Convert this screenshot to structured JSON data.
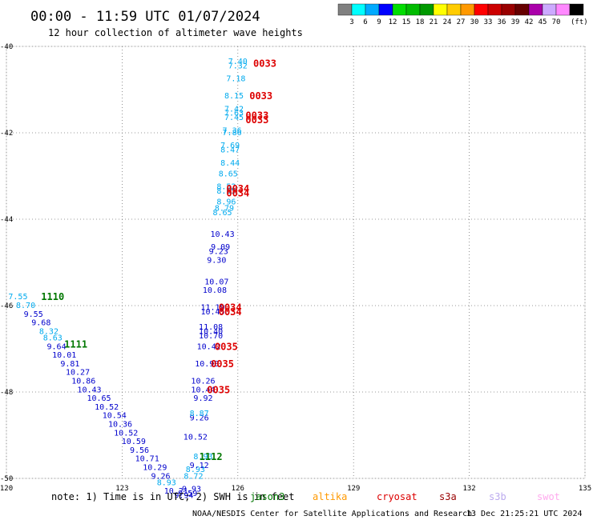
{
  "header": {
    "title": "00:00 - 11:59 UTC 01/07/2024",
    "subtitle": "12 hour collection of altimeter wave heights"
  },
  "legend": {
    "unit": "(ft)",
    "colors": [
      "#808080",
      "#00ffff",
      "#00aaff",
      "#0000ff",
      "#00dd00",
      "#00bb00",
      "#009900",
      "#ffff00",
      "#ffcc00",
      "#ff9900",
      "#ff0000",
      "#cc0000",
      "#990000",
      "#660000",
      "#aa00aa",
      "#ccaaff",
      "#ff88ff",
      "#000000"
    ],
    "labels": [
      "3",
      "6",
      "9",
      "12",
      "15",
      "18",
      "21",
      "24",
      "27",
      "30",
      "33",
      "36",
      "39",
      "42",
      "45",
      "70"
    ]
  },
  "footer": {
    "note": "note: 1) Time is in UTC; 2) SWH is in feet",
    "credit": "NOAA/NESDIS Center for Satellite Applications and Research",
    "timestamp": "13 Dec 21:25:21 UTC 2024",
    "satellites": [
      {
        "name": "jason3",
        "color": "#007700"
      },
      {
        "name": "altika",
        "color": "#ff9900"
      },
      {
        "name": "cryosat",
        "color": "#dd0000"
      },
      {
        "name": "s3a",
        "color": "#990000"
      },
      {
        "name": "s3b",
        "color": "#bbaaee"
      },
      {
        "name": "swot",
        "color": "#ffaaee"
      }
    ]
  },
  "chart_data": {
    "type": "scatter",
    "xlim": [
      120,
      135
    ],
    "ylim": [
      -50,
      -40
    ],
    "x_ticks": [
      120,
      123,
      126,
      129,
      132,
      135
    ],
    "y_ticks": [
      -40,
      -42,
      -44,
      -46,
      -48,
      -50
    ],
    "tick_labels": {
      "x": [
        "120",
        "123",
        "126",
        "129",
        "132",
        "135"
      ],
      "y": [
        "-40",
        "-42",
        "-44",
        "-46",
        "-48",
        "-50"
      ]
    },
    "grid": true,
    "series": [
      {
        "name": "jason3",
        "color": "#007700",
        "passes": [
          {
            "label": "1110",
            "x": 121.2,
            "y": -45.8
          },
          {
            "label": "1111",
            "x": 121.8,
            "y": -46.9
          },
          {
            "label": "1112",
            "x": 125.3,
            "y": -49.5
          }
        ],
        "points": [
          {
            "x": 120.3,
            "y": -45.8,
            "v": "7.55"
          },
          {
            "x": 120.5,
            "y": -46.0,
            "v": "8.70"
          },
          {
            "x": 120.7,
            "y": -46.2,
            "v": "9.55"
          },
          {
            "x": 120.9,
            "y": -46.4,
            "v": "9.68"
          },
          {
            "x": 121.1,
            "y": -46.6,
            "v": "8.32"
          },
          {
            "x": 121.2,
            "y": -46.75,
            "v": "8.63"
          },
          {
            "x": 121.3,
            "y": -46.95,
            "v": "9.64"
          },
          {
            "x": 121.5,
            "y": -47.15,
            "v": "10.01"
          },
          {
            "x": 121.65,
            "y": -47.35,
            "v": "9.81"
          },
          {
            "x": 121.85,
            "y": -47.55,
            "v": "10.27"
          },
          {
            "x": 122.0,
            "y": -47.75,
            "v": "10.86"
          },
          {
            "x": 122.15,
            "y": -47.95,
            "v": "10.43"
          },
          {
            "x": 122.4,
            "y": -48.15,
            "v": "10.65"
          },
          {
            "x": 122.6,
            "y": -48.35,
            "v": "10.52"
          },
          {
            "x": 122.8,
            "y": -48.55,
            "v": "10.54"
          },
          {
            "x": 122.95,
            "y": -48.75,
            "v": "10.36"
          },
          {
            "x": 123.1,
            "y": -48.95,
            "v": "10.52"
          },
          {
            "x": 123.3,
            "y": -49.15,
            "v": "10.59"
          },
          {
            "x": 123.45,
            "y": -49.35,
            "v": "9.56"
          },
          {
            "x": 123.65,
            "y": -49.55,
            "v": "10.71"
          },
          {
            "x": 123.85,
            "y": -49.75,
            "v": "10.29"
          },
          {
            "x": 124.0,
            "y": -49.95,
            "v": "9.26"
          },
          {
            "x": 124.15,
            "y": -50.1,
            "v": "8.93"
          },
          {
            "x": 124.4,
            "y": -50.3,
            "v": "10.21"
          },
          {
            "x": 124.6,
            "y": -50.4,
            "v": "9.94"
          },
          {
            "x": 124.7,
            "y": -50.35,
            "v": "9.59"
          },
          {
            "x": 124.8,
            "y": -50.25,
            "v": "9.93"
          },
          {
            "x": 124.85,
            "y": -49.95,
            "v": "8.72"
          },
          {
            "x": 124.9,
            "y": -49.8,
            "v": "8.93"
          },
          {
            "x": 125.0,
            "y": -49.7,
            "v": "9.12"
          },
          {
            "x": 125.1,
            "y": -49.5,
            "v": "8.93"
          },
          {
            "x": 124.9,
            "y": -49.05,
            "v": "10.52"
          },
          {
            "x": 125.0,
            "y": -48.6,
            "v": "9.26"
          },
          {
            "x": 125.0,
            "y": -48.5,
            "v": "8.87"
          },
          {
            "x": 125.1,
            "y": -48.15,
            "v": "9.92"
          },
          {
            "x": 125.1,
            "y": -47.95,
            "v": "10.44"
          },
          {
            "x": 125.1,
            "y": -47.75,
            "v": "10.26"
          },
          {
            "x": 125.2,
            "y": -47.35,
            "v": "10.98"
          },
          {
            "x": 125.25,
            "y": -46.95,
            "v": "10.42"
          },
          {
            "x": 125.3,
            "y": -46.7,
            "v": "10.70"
          },
          {
            "x": 125.3,
            "y": -46.6,
            "v": "10.40"
          },
          {
            "x": 125.3,
            "y": -46.5,
            "v": "11.08"
          },
          {
            "x": 125.35,
            "y": -46.15,
            "v": "10.45"
          },
          {
            "x": 125.35,
            "y": -46.05,
            "v": "11.19"
          },
          {
            "x": 125.4,
            "y": -45.65,
            "v": "10.08"
          },
          {
            "x": 125.45,
            "y": -45.45,
            "v": "10.07"
          },
          {
            "x": 125.45,
            "y": -44.95,
            "v": "9.30"
          },
          {
            "x": 125.5,
            "y": -44.75,
            "v": "9.23"
          },
          {
            "x": 125.55,
            "y": -44.65,
            "v": "9.09"
          },
          {
            "x": 125.6,
            "y": -44.35,
            "v": "10.43"
          },
          {
            "x": 125.6,
            "y": -43.85,
            "v": "8.65"
          },
          {
            "x": 125.65,
            "y": -43.75,
            "v": "8.79"
          },
          {
            "x": 125.7,
            "y": -43.6,
            "v": "8.96"
          },
          {
            "x": 125.7,
            "y": -43.35,
            "v": "8.65"
          },
          {
            "x": 125.7,
            "y": -43.25,
            "v": "8.52"
          },
          {
            "x": 125.75,
            "y": -42.95,
            "v": "8.65"
          },
          {
            "x": 125.8,
            "y": -42.7,
            "v": "8.44"
          },
          {
            "x": 125.8,
            "y": -42.4,
            "v": "8.47"
          },
          {
            "x": 125.8,
            "y": -42.3,
            "v": "7.69"
          },
          {
            "x": 125.85,
            "y": -42.0,
            "v": "7.86"
          },
          {
            "x": 125.85,
            "y": -41.95,
            "v": "7.36"
          },
          {
            "x": 125.9,
            "y": -41.65,
            "v": "7.45"
          },
          {
            "x": 125.9,
            "y": -41.55,
            "v": "7.63"
          },
          {
            "x": 125.9,
            "y": -41.45,
            "v": "7.42"
          },
          {
            "x": 125.9,
            "y": -41.15,
            "v": "8.15"
          },
          {
            "x": 125.95,
            "y": -40.75,
            "v": "7.18"
          },
          {
            "x": 126.0,
            "y": -40.45,
            "v": "7.32"
          },
          {
            "x": 126.0,
            "y": -40.35,
            "v": "7.40"
          }
        ]
      },
      {
        "name": "cryosat",
        "color": "#dd0000",
        "passes": [
          {
            "label": "0033",
            "x": 126.7,
            "y": -40.4
          },
          {
            "label": "0033",
            "x": 126.6,
            "y": -41.15
          },
          {
            "label": "0033",
            "x": 126.5,
            "y": -41.6
          },
          {
            "label": "0033",
            "x": 126.5,
            "y": -41.7
          },
          {
            "label": "0034",
            "x": 126.0,
            "y": -43.3
          },
          {
            "label": "0034",
            "x": 126.0,
            "y": -43.4
          },
          {
            "label": "0034",
            "x": 125.8,
            "y": -46.05
          },
          {
            "label": "0034",
            "x": 125.8,
            "y": -46.15
          },
          {
            "label": "0035",
            "x": 125.7,
            "y": -46.95
          },
          {
            "label": "0035",
            "x": 125.6,
            "y": -47.35
          },
          {
            "label": "0035",
            "x": 125.5,
            "y": -47.95
          }
        ]
      }
    ]
  }
}
